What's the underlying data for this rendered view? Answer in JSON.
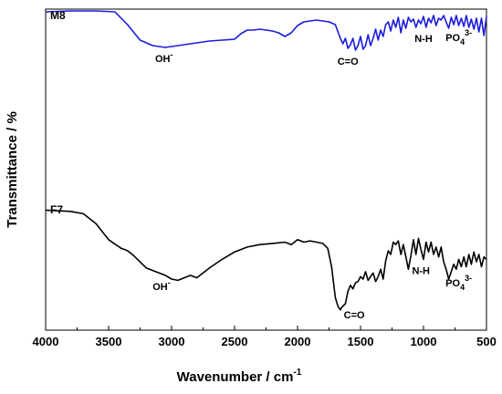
{
  "chart_data": {
    "type": "line",
    "xlabel": "Wavenumber / cm",
    "xlabel_superscript": "-1",
    "ylabel": "Transmittance / %",
    "xlim": [
      4000,
      500
    ],
    "x_ticks": [
      "4000",
      "3500",
      "3000",
      "2500",
      "2000",
      "1500",
      "1000",
      "500"
    ],
    "grid": false,
    "series": [
      {
        "name": "M8",
        "color": "#1c1cdc",
        "x": [
          4000,
          3800,
          3600,
          3450,
          3350,
          3250,
          3150,
          3050,
          3000,
          2900,
          2800,
          2700,
          2600,
          2500,
          2450,
          2400,
          2350,
          2300,
          2250,
          2200,
          2150,
          2100,
          2050,
          2000,
          1950,
          1900,
          1850,
          1800,
          1750,
          1700,
          1660,
          1640,
          1620,
          1600,
          1580,
          1560,
          1540,
          1520,
          1500,
          1480,
          1460,
          1440,
          1420,
          1400,
          1380,
          1360,
          1340,
          1320,
          1300,
          1280,
          1260,
          1240,
          1220,
          1200,
          1180,
          1160,
          1140,
          1120,
          1100,
          1080,
          1060,
          1040,
          1020,
          1000,
          980,
          960,
          940,
          920,
          900,
          880,
          860,
          840,
          820,
          800,
          780,
          760,
          740,
          720,
          700,
          680,
          660,
          640,
          620,
          600,
          580,
          560,
          540,
          520,
          500
        ],
        "y": [
          99,
          100,
          100,
          99,
          85,
          68,
          62,
          60,
          61,
          63,
          65,
          67,
          68,
          69,
          75,
          79,
          79,
          80,
          79,
          78,
          76,
          72,
          76,
          84,
          88,
          89,
          90,
          89,
          88,
          85,
          70,
          64,
          70,
          59,
          63,
          70,
          57,
          62,
          72,
          58,
          62,
          74,
          62,
          70,
          80,
          68,
          79,
          72,
          85,
          88,
          78,
          90,
          82,
          93,
          76,
          90,
          81,
          93,
          88,
          91,
          82,
          90,
          86,
          94,
          82,
          92,
          87,
          95,
          84,
          92,
          90,
          95,
          88,
          81,
          93,
          85,
          95,
          84,
          92,
          83,
          95,
          82,
          91,
          80,
          92,
          77,
          92,
          73,
          94
        ],
        "label_at": [
          960,
          83
        ]
      },
      {
        "name": "F7",
        "color": "#000000",
        "x": [
          4000,
          3800,
          3700,
          3600,
          3500,
          3400,
          3350,
          3300,
          3200,
          3100,
          3050,
          3000,
          2950,
          2900,
          2850,
          2800,
          2700,
          2600,
          2500,
          2450,
          2400,
          2300,
          2200,
          2100,
          2050,
          2000,
          1950,
          1900,
          1850,
          1800,
          1760,
          1730,
          1700,
          1680,
          1660,
          1650,
          1640,
          1620,
          1600,
          1580,
          1560,
          1540,
          1520,
          1500,
          1480,
          1460,
          1440,
          1420,
          1400,
          1380,
          1360,
          1340,
          1320,
          1300,
          1280,
          1260,
          1240,
          1220,
          1200,
          1180,
          1160,
          1140,
          1120,
          1100,
          1080,
          1060,
          1040,
          1020,
          1000,
          980,
          960,
          940,
          920,
          900,
          880,
          860,
          840,
          820,
          800,
          780,
          760,
          740,
          720,
          700,
          680,
          660,
          640,
          620,
          600,
          580,
          560,
          540,
          520,
          500
        ],
        "y": [
          96,
          95,
          93,
          85,
          72,
          65,
          63,
          59,
          49,
          45,
          43,
          40,
          39,
          41,
          43,
          41,
          49,
          56,
          62,
          64,
          66,
          68,
          69,
          70,
          68,
          72,
          70,
          71,
          70,
          69,
          65,
          50,
          25,
          18,
          15,
          17,
          18,
          20,
          30,
          35,
          32,
          37,
          38,
          42,
          40,
          46,
          39,
          42,
          45,
          38,
          42,
          48,
          40,
          55,
          63,
          60,
          70,
          68,
          71,
          60,
          68,
          58,
          48,
          59,
          72,
          60,
          73,
          64,
          56,
          70,
          62,
          70,
          60,
          66,
          58,
          66,
          54,
          48,
          40,
          46,
          52,
          48,
          56,
          50,
          58,
          50,
          60,
          52,
          62,
          54,
          60,
          50,
          58,
          56
        ]
      }
    ],
    "annotations": [
      {
        "series": "M8",
        "text": "OH",
        "sup": "-",
        "x": 3060
      },
      {
        "series": "M8",
        "text": "C=O",
        "x": 1600
      },
      {
        "series": "M8",
        "text": "N-H",
        "x": 1000
      },
      {
        "series": "M8",
        "text": "PO",
        "sub": "4",
        "sup": "3-",
        "x": 720
      },
      {
        "series": "F7",
        "text": "OH",
        "sup": "-",
        "x": 3080
      },
      {
        "series": "F7",
        "text": "C=O",
        "x": 1550
      },
      {
        "series": "F7",
        "text": "N-H",
        "x": 1020
      },
      {
        "series": "F7",
        "text": "PO",
        "sub": "4",
        "sup": "3-",
        "x": 720
      }
    ]
  }
}
